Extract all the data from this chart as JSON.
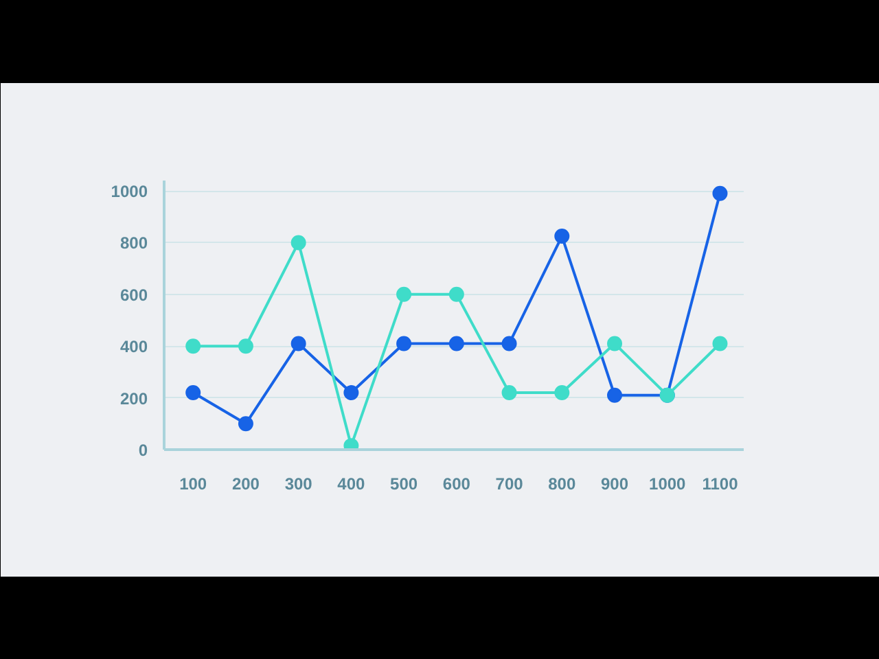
{
  "chart_data": {
    "type": "line",
    "categories": [
      "100",
      "200",
      "300",
      "400",
      "500",
      "600",
      "700",
      "800",
      "900",
      "1000",
      "1100"
    ],
    "series": [
      {
        "color": "#1763e6",
        "values": [
          220,
          100,
          410,
          220,
          410,
          410,
          410,
          825,
          210,
          210,
          990
        ]
      },
      {
        "color": "#3fdcc9",
        "values": [
          400,
          400,
          800,
          15,
          600,
          600,
          220,
          220,
          410,
          210,
          410
        ]
      }
    ],
    "ylim": [
      0,
      1040
    ],
    "yticks": [
      0,
      200,
      400,
      600,
      800,
      1000
    ],
    "grid": "y",
    "marker": "circle",
    "line_style": "solid"
  }
}
